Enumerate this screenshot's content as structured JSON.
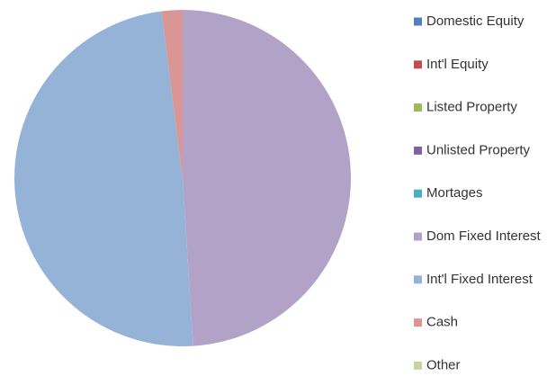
{
  "chart_data": {
    "type": "pie",
    "categories": [
      "Domestic Equity",
      "Int'l Equity",
      "Listed Property",
      "Unlisted Property",
      "Mortages",
      "Dom Fixed Interest",
      "Int'l Fixed Interest",
      "Cash",
      "Other"
    ],
    "values": [
      0,
      0,
      0,
      0,
      0,
      49,
      49,
      2,
      0
    ],
    "colors": [
      "#4f81bd",
      "#c0504d",
      "#9bbb59",
      "#8064a2",
      "#4bacc6",
      "#b3a2c7",
      "#95b3d7",
      "#d99694",
      "#c3d69b"
    ],
    "legend": "right"
  }
}
